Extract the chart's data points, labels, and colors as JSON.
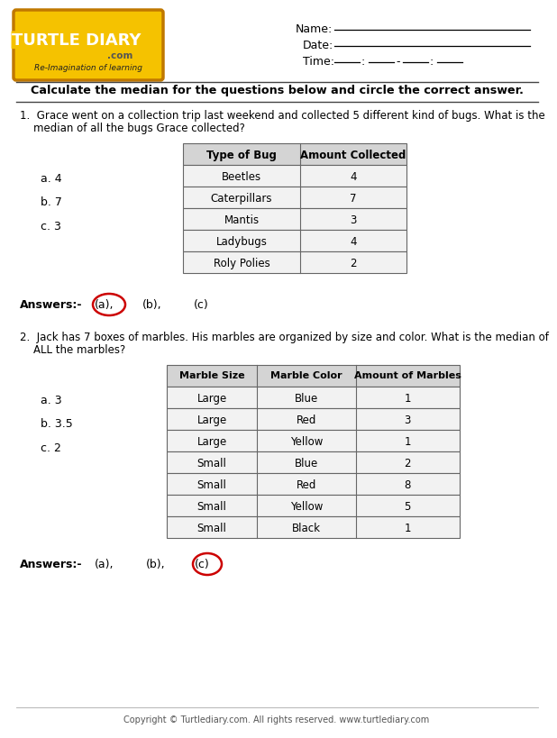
{
  "title_text": "Calculate the median for the questions below and circle the correct answer.",
  "q1_text_line1": "1.  Grace went on a collection trip last weekend and collected 5 different kind of bugs. What is the",
  "q1_text_line2": "    median of all the bugs Grace collected?",
  "q1_table_headers": [
    "Type of Bug",
    "Amount Collected"
  ],
  "q1_table_rows": [
    [
      "Beetles",
      "4"
    ],
    [
      "Caterpillars",
      "7"
    ],
    [
      "Mantis",
      "3"
    ],
    [
      "Ladybugs",
      "4"
    ],
    [
      "Roly Polies",
      "2"
    ]
  ],
  "q1_options": [
    "a. 4",
    "b. 7",
    "c. 3"
  ],
  "q1_answer_label": "Answers:-",
  "q1_answers": [
    "(a),",
    "(b),",
    "(c)"
  ],
  "q1_circled": 0,
  "q2_text_line1": "2.  Jack has 7 boxes of marbles. His marbles are organized by size and color. What is the median of",
  "q2_text_line2": "    ALL the marbles?",
  "q2_table_headers": [
    "Marble Size",
    "Marble Color",
    "Amount of Marbles"
  ],
  "q2_table_rows": [
    [
      "Large",
      "Blue",
      "1"
    ],
    [
      "Large",
      "Red",
      "3"
    ],
    [
      "Large",
      "Yellow",
      "1"
    ],
    [
      "Small",
      "Blue",
      "2"
    ],
    [
      "Small",
      "Red",
      "8"
    ],
    [
      "Small",
      "Yellow",
      "5"
    ],
    [
      "Small",
      "Black",
      "1"
    ]
  ],
  "q2_options": [
    "a. 3",
    "b. 3.5",
    "c. 2"
  ],
  "q2_answer_label": "Answers:-",
  "q2_answers": [
    "(a),",
    "(b),",
    "(c)"
  ],
  "q2_circled": 2,
  "footer": "Copyright © Turtlediary.com. All rights reserved. www.turtlediary.com",
  "bg_color": "#ffffff",
  "table_header_bg": "#d4d4d4",
  "table_row_bg": "#f2f2f2",
  "border_color": "#666666",
  "answer_circle_color": "#cc0000",
  "logo_main_color": "#f5c200",
  "logo_outline_color": "#c07800",
  "name_label": "Name:",
  "date_label": "Date:",
  "time_label": "Time:"
}
